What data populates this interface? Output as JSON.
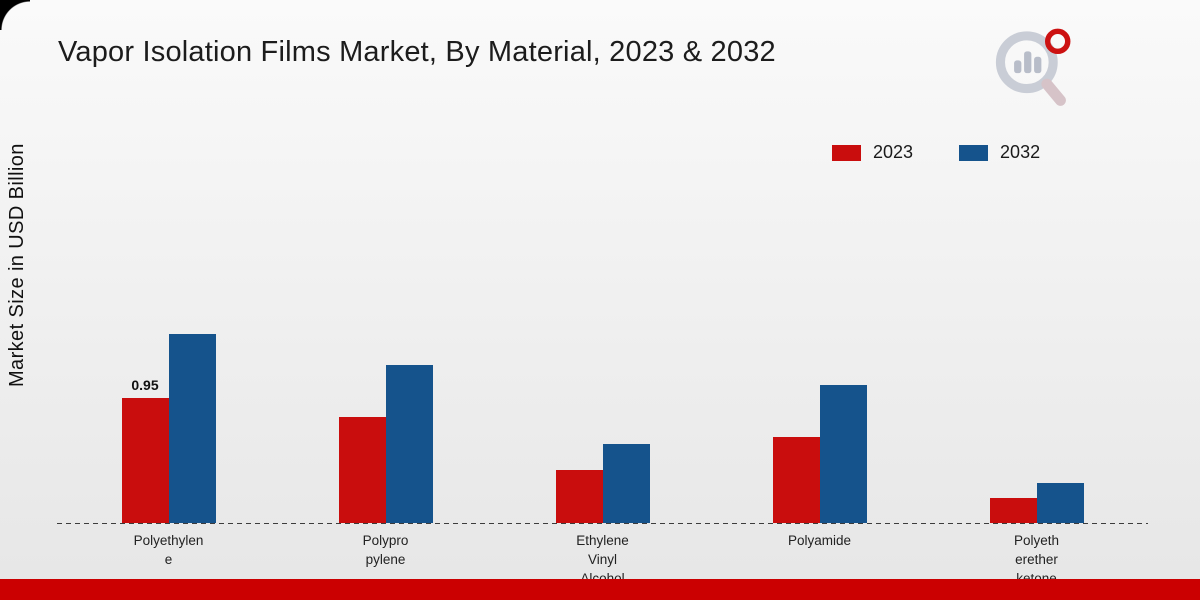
{
  "page": {
    "title": "Vapor Isolation Films Market, By Material, 2023 & 2032",
    "y_axis_label": "Market Size in USD Billion",
    "accent_bar_color": "#cb0001"
  },
  "legend": {
    "items": [
      {
        "label": "2023",
        "color": "#c90d0d"
      },
      {
        "label": "2032",
        "color": "#15538c"
      }
    ]
  },
  "chart_data": {
    "type": "bar",
    "title": "Vapor Isolation Films Market, By Material, 2023 & 2032",
    "xlabel": "",
    "ylabel": "Market Size in USD Billion",
    "categories": [
      "Polyethylene",
      "Polypropylene",
      "Ethylene Vinyl Alcohol",
      "Polyamide",
      "Polyetheretherketone"
    ],
    "category_labels_display": [
      "Polyethylen\ne",
      "Polypro\npylene",
      "Ethylene\nVinyl\nAlcohol",
      "Polyamide",
      "Polyeth\nerether\nketone"
    ],
    "series": [
      {
        "name": "2023",
        "color": "#c90d0d",
        "values": [
          0.95,
          0.8,
          0.4,
          0.65,
          0.19
        ]
      },
      {
        "name": "2032",
        "color": "#15538c",
        "values": [
          1.43,
          1.2,
          0.6,
          1.05,
          0.3
        ]
      }
    ],
    "ylim": [
      0,
      1.6
    ],
    "grid": false,
    "legend_position": "top-right",
    "baseline_style": "dashed",
    "data_labels": [
      {
        "series_index": 0,
        "category_index": 0,
        "text": "0.95"
      }
    ]
  }
}
